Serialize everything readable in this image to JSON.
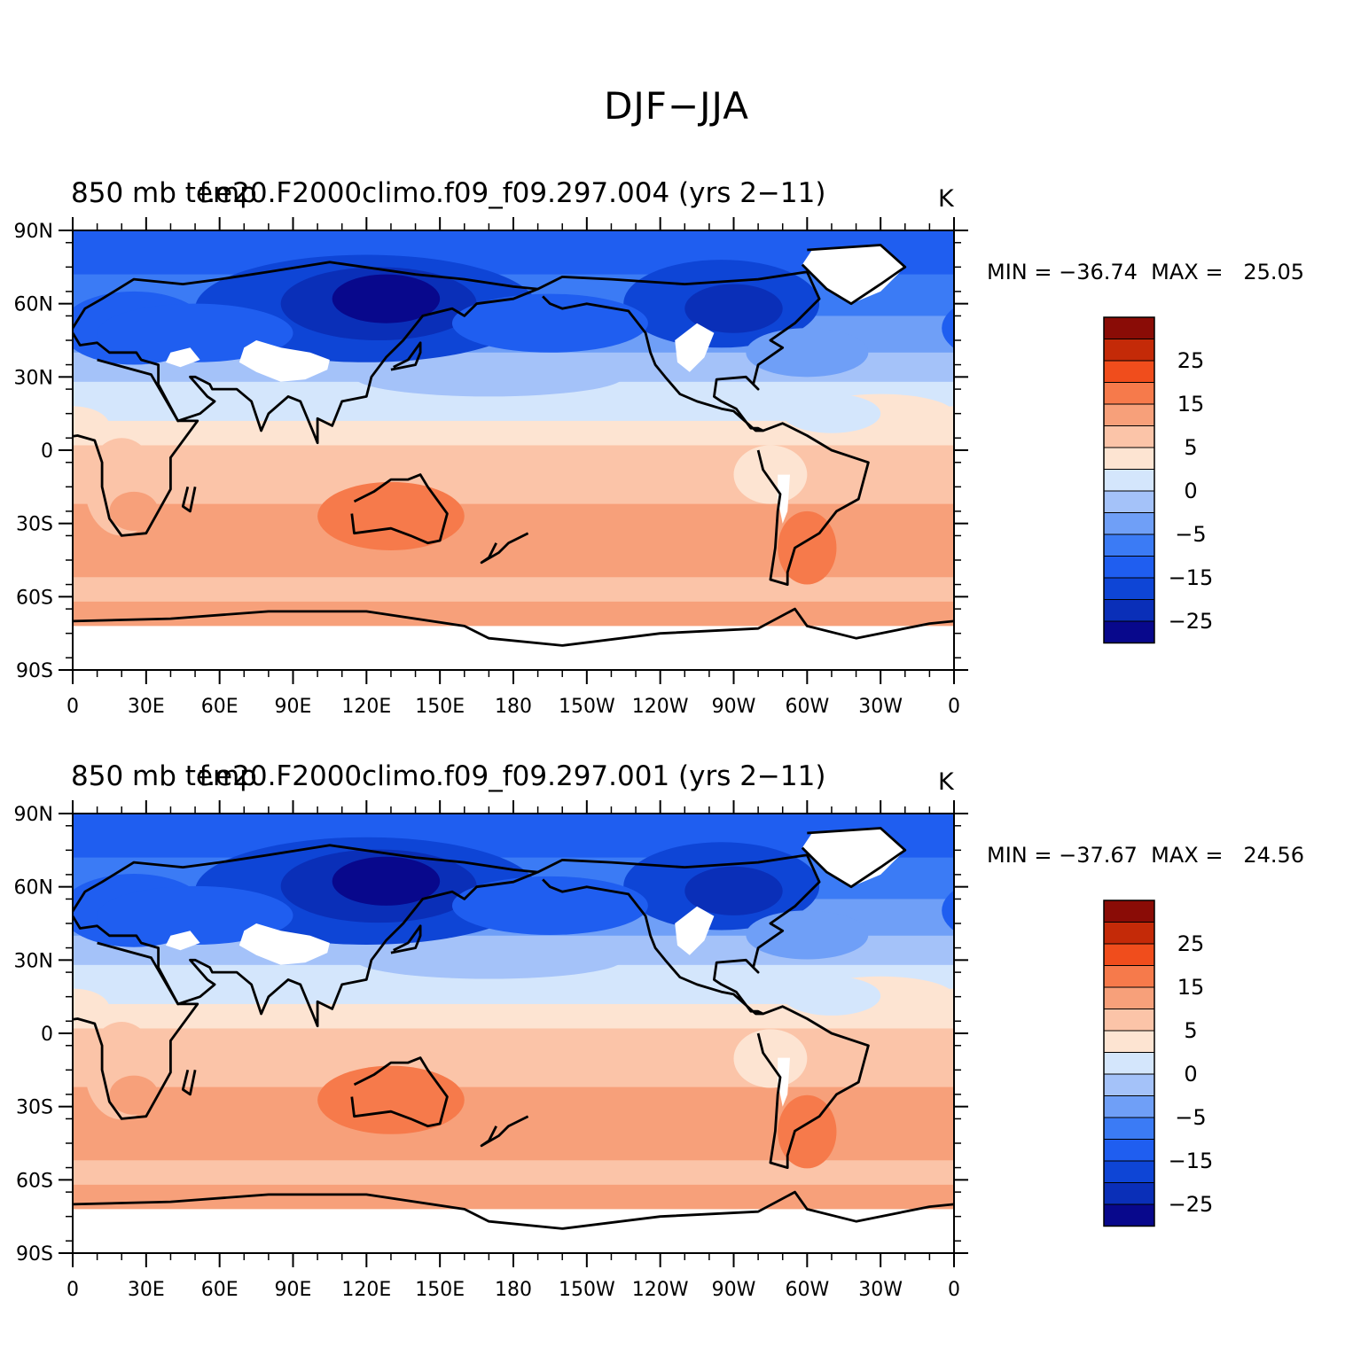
{
  "title": "DJF−JJA",
  "colors": {
    "levels": [
      "#08088c",
      "#0a2fb8",
      "#0e45d6",
      "#1f5ef0",
      "#3b7bf5",
      "#6f9ff7",
      "#a4c2f9",
      "#d4e6fc",
      "#fde4d2",
      "#fbc4a8",
      "#f7a07a",
      "#f67a4b",
      "#f04d1c",
      "#c42a08",
      "#8a0c06"
    ],
    "land_outline": "#000000",
    "missing": "#ffffff"
  },
  "colorbar": {
    "tick_labels": [
      "25",
      "15",
      "5",
      "0",
      "−5",
      "−15",
      "−25"
    ]
  },
  "axes": {
    "lat_labels": [
      "90N",
      "60N",
      "30N",
      "0",
      "30S",
      "60S",
      "90S"
    ],
    "lon_labels": [
      "0",
      "30E",
      "60E",
      "90E",
      "120E",
      "150E",
      "180",
      "150W",
      "120W",
      "90W",
      "60W",
      "30W",
      "0"
    ]
  },
  "panels": [
    {
      "left_title": "850  mb temp",
      "center_title": "f.e20.F2000climo.f09_f09.297.004 (yrs 2−11)",
      "units": "K",
      "minmax": "MIN = −36.74  MAX =   25.05"
    },
    {
      "left_title": "850  mb temp",
      "center_title": "f.e20.F2000climo.f09_f09.297.001 (yrs 2−11)",
      "units": "K",
      "minmax": "MIN = −37.67  MAX =   24.56"
    }
  ],
  "chart_data": {
    "type": "heatmap",
    "title": "DJF−JJA",
    "variable": "850 mb temp",
    "units": "K",
    "contour_levels": [
      -35,
      -30,
      -25,
      -20,
      -15,
      -10,
      -5,
      0,
      5,
      10,
      15,
      20,
      25,
      30
    ],
    "colorbar_tick_labels": [
      "25",
      "15",
      "5",
      "0",
      "−5",
      "−15",
      "−25"
    ],
    "lat_range": [
      -90,
      90
    ],
    "lon_range": [
      0,
      360
    ],
    "panels": [
      {
        "case": "f.e20.F2000climo.f09_f09.297.004",
        "years": "2−11",
        "min": -36.74,
        "max": 25.05
      },
      {
        "case": "f.e20.F2000climo.f09_f09.297.001",
        "years": "2−11",
        "min": -37.67,
        "max": 24.56
      }
    ]
  }
}
